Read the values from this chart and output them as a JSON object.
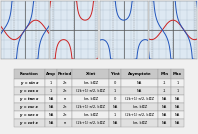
{
  "table_headers": [
    "Function",
    "Amp",
    "Period",
    "X-int",
    "Y-int",
    "Asymptote",
    "Min",
    "Max"
  ],
  "table_data": [
    [
      "y = sin x",
      "1",
      "2π",
      "kπ, k∈Z",
      "0",
      "NA",
      "-1",
      "1"
    ],
    [
      "y = cos x",
      "1",
      "2π",
      "(2k+1) π/2, k∈Z",
      "1",
      "NA",
      "-1",
      "1"
    ],
    [
      "y = tan x",
      "NA",
      "π",
      "kπ, k∈Z",
      "0",
      "(2k+1) π/2, k∈Z",
      "NA",
      "NA"
    ],
    [
      "y = csc x",
      "NA",
      "2π",
      "(2k+1) π/2, k∈Z",
      "NA",
      "kπ, k∈Z",
      "NA",
      "NA"
    ],
    [
      "y = sec x",
      "NA",
      "2π",
      "kπ, k∈Z",
      "1",
      "(2k+1) π/2, k∈Z",
      "NA",
      "NA"
    ],
    [
      "y = cot x",
      "NA",
      "π",
      "(2k+1) π/2, k∈Z",
      "NA",
      "kπ, k∈Z",
      "NA",
      "NA"
    ]
  ],
  "header_bg": "#c8c8c8",
  "row_colors": [
    "#f0f0f0",
    "#e0e0e0",
    "#f0f0f0",
    "#e0e0e0",
    "#f0f0f0",
    "#e0e0e0"
  ],
  "graph_bg": "#dde8f2",
  "fig_bg": "#f0f0f0",
  "graph_line_red": "#cc2222",
  "graph_line_blue": "#2255bb",
  "grid_color": "#aabccc",
  "axis_color": "#555555",
  "asym_color": "#888888",
  "graph_kinds": [
    0,
    1,
    2,
    3
  ],
  "num_graphs": 4
}
